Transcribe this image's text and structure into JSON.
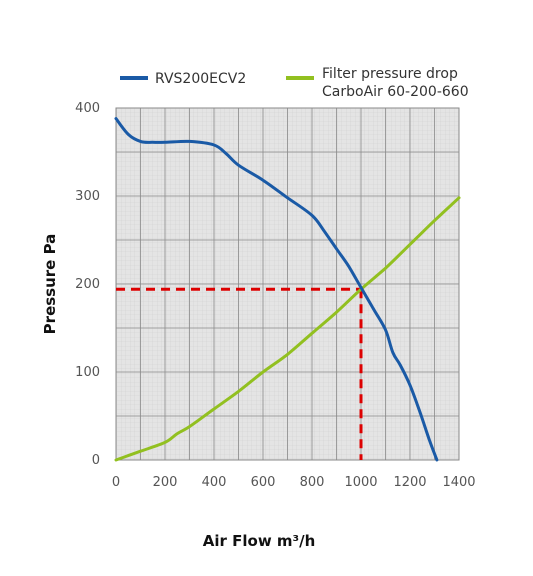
{
  "chart_data": {
    "type": "line",
    "xlabel": "Air Flow m³/h",
    "ylabel": "Pressure Pa",
    "xlim": [
      0,
      1400
    ],
    "ylim": [
      0,
      400
    ],
    "x_ticks": [
      0,
      200,
      400,
      600,
      800,
      1000,
      1200,
      1400
    ],
    "y_ticks": [
      0,
      100,
      200,
      300,
      400
    ],
    "x_tick_labels": [
      "0",
      "200",
      "400",
      "600",
      "800",
      "1000",
      "1200",
      "1400"
    ],
    "y_tick_labels": [
      "0",
      "100",
      "200",
      "300",
      "400"
    ],
    "grid": true,
    "legend_position": "top",
    "series": [
      {
        "name": "RVS200ECV2",
        "color": "#1a5aa6",
        "x": [
          0,
          50,
          100,
          150,
          200,
          300,
          400,
          450,
          500,
          600,
          700,
          800,
          850,
          900,
          950,
          1000,
          1050,
          1100,
          1130,
          1160,
          1200,
          1240,
          1280,
          1310
        ],
        "y": [
          388,
          370,
          362,
          361,
          361,
          362,
          358,
          348,
          335,
          318,
          298,
          278,
          260,
          240,
          220,
          196,
          172,
          148,
          122,
          108,
          85,
          55,
          22,
          0
        ]
      },
      {
        "name": "Filter pressure drop",
        "name_line2": "CarboAir 60-200-660",
        "color": "#92c020",
        "x": [
          0,
          100,
          200,
          250,
          300,
          400,
          500,
          600,
          700,
          800,
          900,
          1000,
          1100,
          1200,
          1300,
          1400
        ],
        "y": [
          0,
          10,
          20,
          30,
          38,
          58,
          78,
          100,
          120,
          144,
          168,
          194,
          218,
          245,
          272,
          298
        ]
      }
    ],
    "annotation": {
      "type": "operating-point",
      "x": 1000,
      "y": 194,
      "color": "#dd0000"
    }
  }
}
